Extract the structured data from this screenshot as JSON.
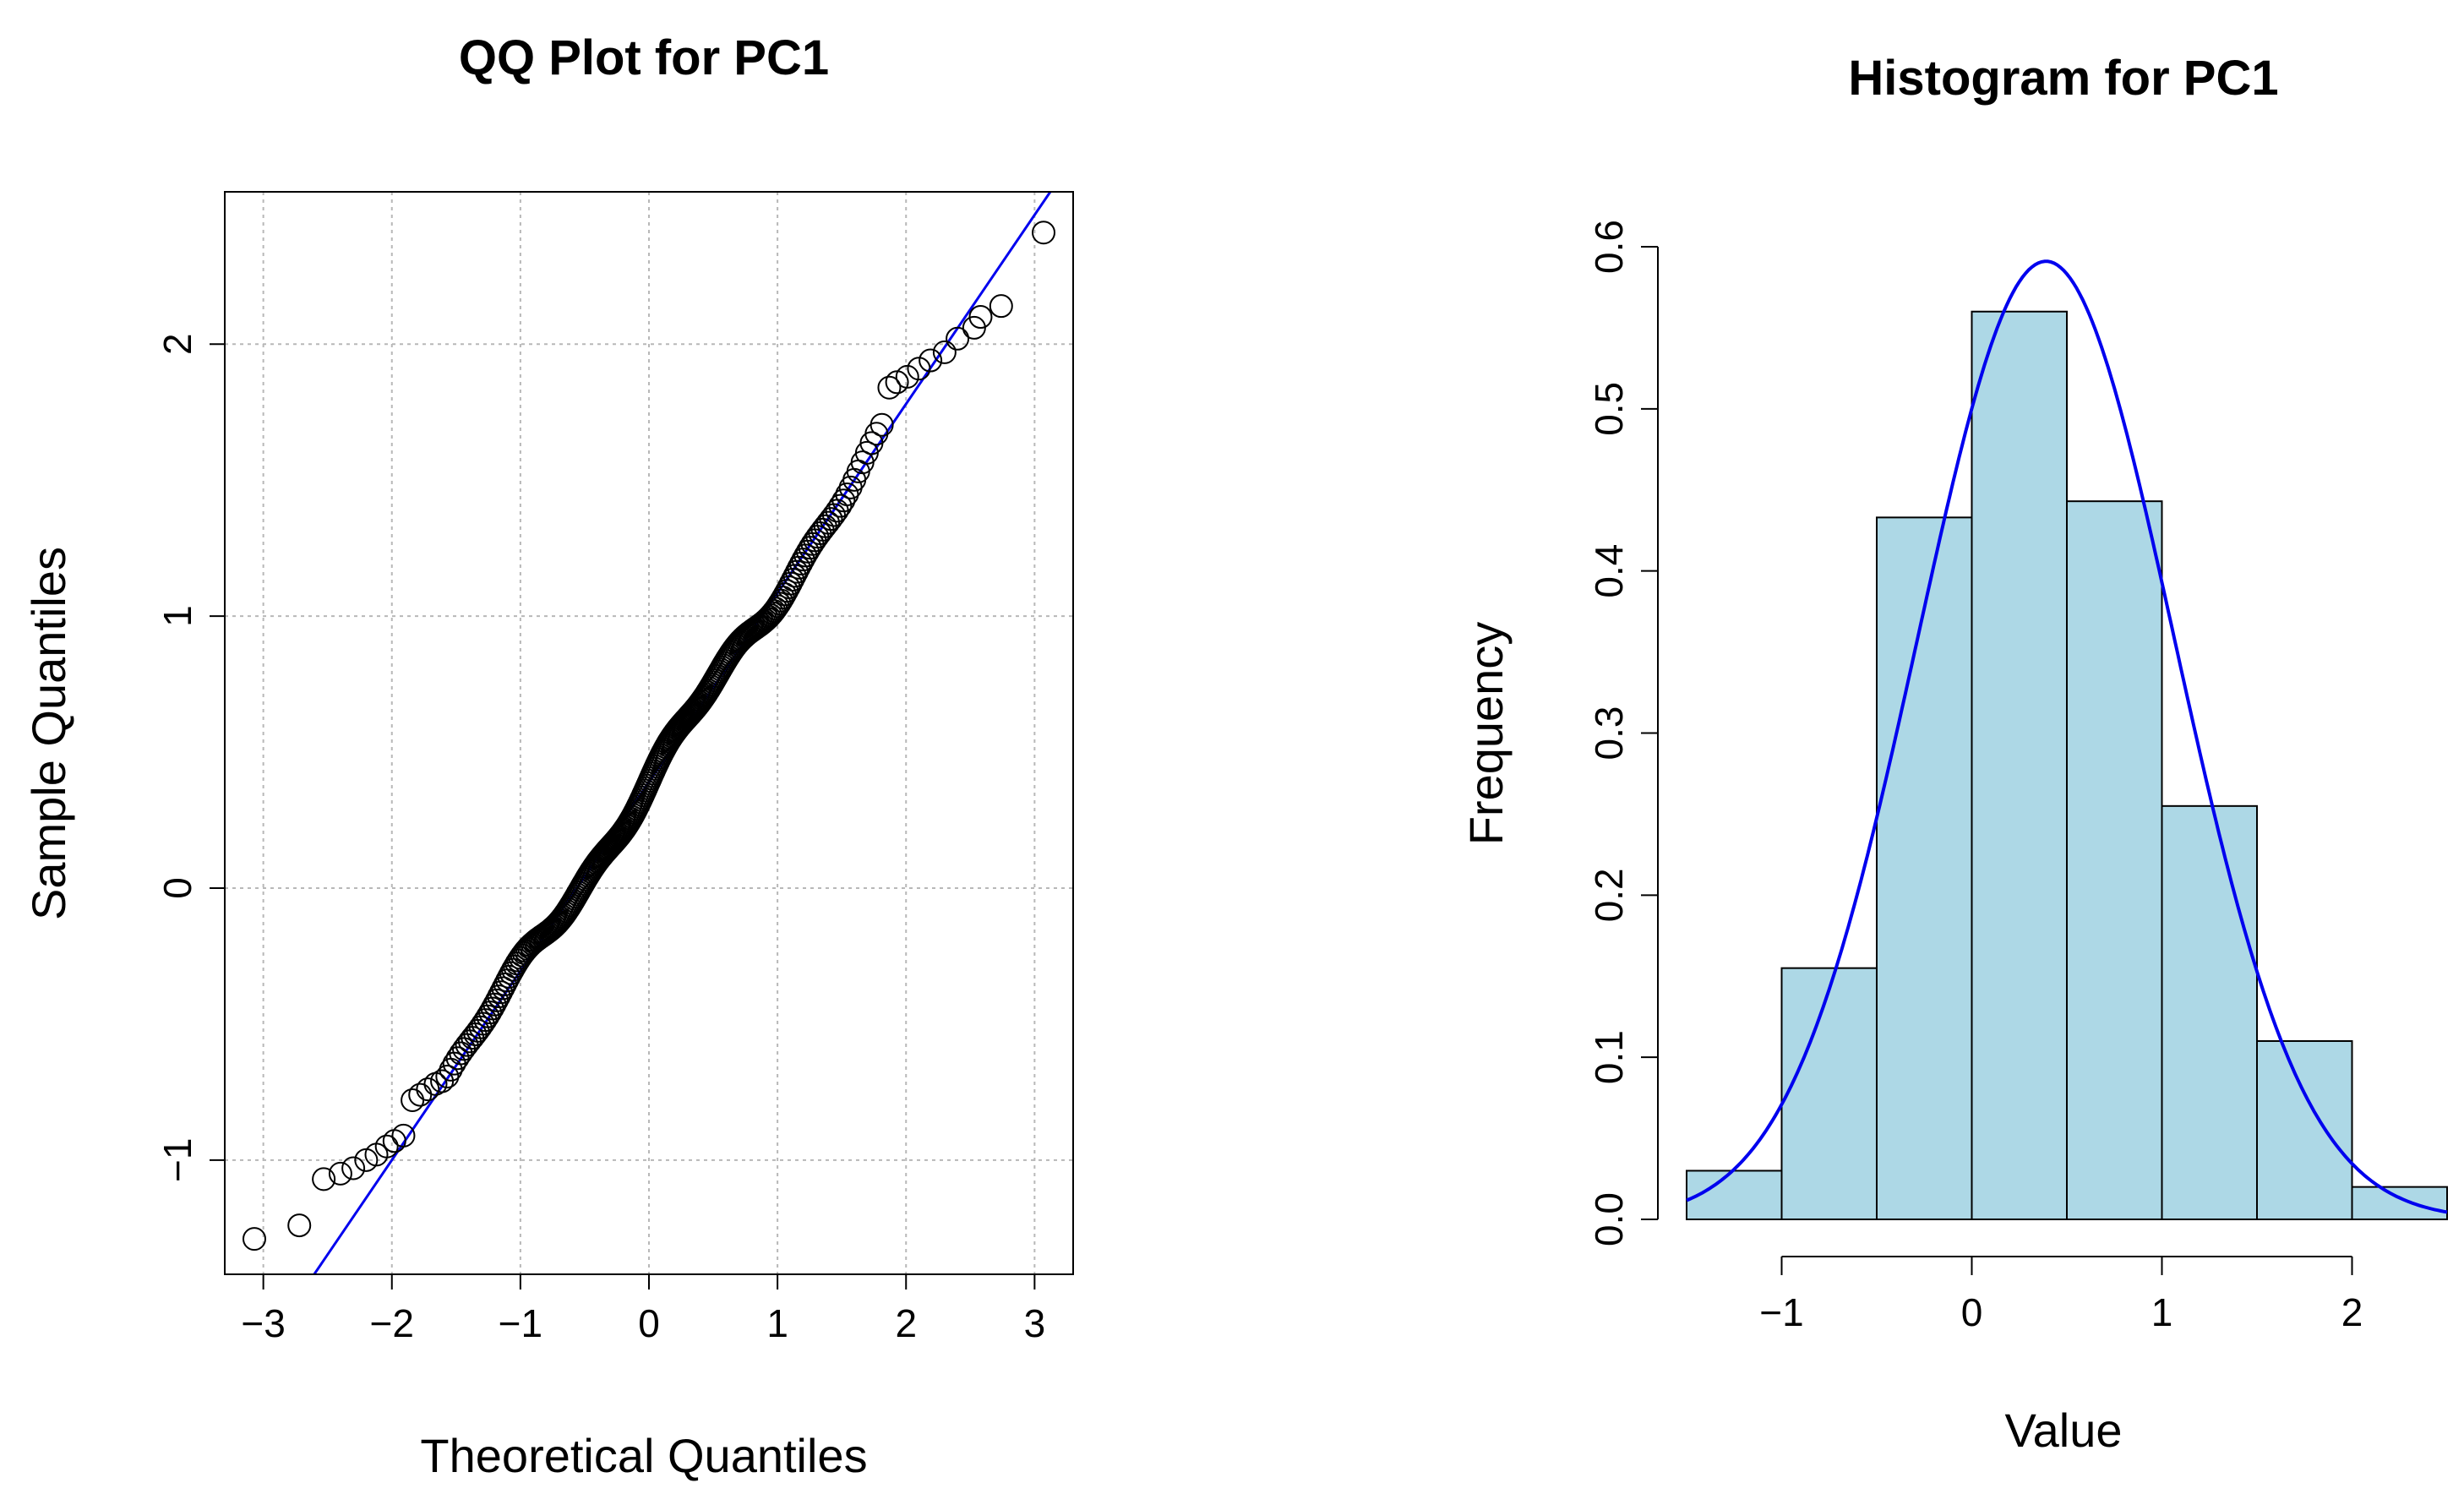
{
  "chart_data": [
    {
      "type": "scatter",
      "title": "QQ Plot for PC1",
      "xlabel": "Theoretical Quantiles",
      "ylabel": "Sample Quantiles",
      "xlim": [
        -3.3,
        3.3
      ],
      "ylim": [
        -1.42,
        2.56
      ],
      "x_ticks": [
        -3,
        -2,
        -1,
        0,
        1,
        2,
        3
      ],
      "x_tick_labels": [
        "−3",
        "−2",
        "−1",
        "0",
        "1",
        "2",
        "3"
      ],
      "y_ticks": [
        -1,
        0,
        1,
        2
      ],
      "y_tick_labels": [
        "−1",
        "0",
        "1",
        "2"
      ],
      "grid": true,
      "point_color": "#000000",
      "reference_line": {
        "intercept": 0.39,
        "slope": 0.695,
        "color": "#0000ee"
      },
      "points": {
        "n": 300,
        "mean": 0.39,
        "sd": 0.695,
        "tail_points": [
          [
            -3.07,
            -1.29
          ],
          [
            -2.72,
            -1.24
          ],
          [
            -2.53,
            -1.07
          ],
          [
            -2.4,
            -1.05
          ],
          [
            -2.3,
            -1.03
          ],
          [
            -2.2,
            -1.0
          ],
          [
            -2.12,
            -0.98
          ],
          [
            -2.04,
            -0.95
          ],
          [
            -1.98,
            -0.93
          ],
          [
            -1.91,
            -0.91
          ],
          [
            -1.84,
            -0.78
          ],
          [
            -1.78,
            -0.76
          ],
          [
            -1.72,
            -0.74
          ],
          [
            -1.66,
            -0.72
          ],
          [
            -1.61,
            -0.71
          ],
          [
            1.87,
            1.84
          ],
          [
            1.93,
            1.86
          ],
          [
            2.01,
            1.88
          ],
          [
            2.1,
            1.91
          ],
          [
            2.19,
            1.94
          ],
          [
            2.3,
            1.97
          ],
          [
            2.4,
            2.02
          ],
          [
            2.53,
            2.06
          ],
          [
            2.58,
            2.1
          ],
          [
            2.74,
            2.14
          ],
          [
            3.07,
            2.41
          ]
        ]
      }
    },
    {
      "type": "bar",
      "title": "Histogram for PC1",
      "xlabel": "Value",
      "ylabel": "Frequency",
      "xlim": [
        -1.5,
        2.5
      ],
      "ylim": [
        0,
        0.6
      ],
      "bin_edges": [
        -1.5,
        -1.0,
        -0.5,
        0.0,
        0.5,
        1.0,
        1.5,
        2.0,
        2.5
      ],
      "values": [
        0.03,
        0.155,
        0.433,
        0.56,
        0.443,
        0.255,
        0.11,
        0.02
      ],
      "bar_color": "#add8e6",
      "x_ticks": [
        -1,
        0,
        1,
        2
      ],
      "x_tick_labels": [
        "−1",
        "0",
        "1",
        "2"
      ],
      "y_ticks": [
        0.0,
        0.1,
        0.2,
        0.3,
        0.4,
        0.5,
        0.6
      ],
      "y_tick_labels": [
        "0.0",
        "0.1",
        "0.2",
        "0.3",
        "0.4",
        "0.5",
        "0.6"
      ],
      "grid": false,
      "density_curve": {
        "mean": 0.39,
        "sd": 0.675,
        "color": "#0000ee"
      }
    }
  ]
}
